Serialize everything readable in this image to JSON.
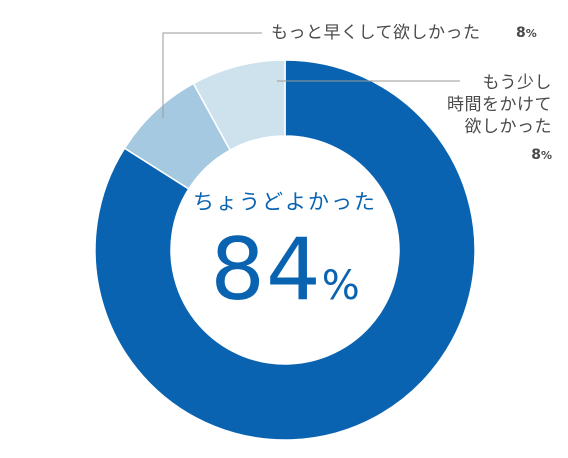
{
  "chart_data": {
    "type": "pie",
    "categories": [
      "ちょうどよかった",
      "もう少し時間をかけて欲しかった",
      "もっと早くして欲しかった"
    ],
    "values": [
      84,
      8,
      8
    ],
    "unit": "%",
    "colors": [
      "#0a63b0",
      "#a4c9e0",
      "#cde2ec"
    ],
    "center_label": "ちょうどよかった",
    "center_value": "84",
    "center_unit": "%",
    "labels": {
      "early": {
        "text": "もっと早くして欲しかった",
        "value": "8",
        "unit": "%"
      },
      "more": {
        "lines": [
          "もう少し",
          "時間をかけて",
          "欲しかった"
        ],
        "value": "8",
        "unit": "%"
      }
    }
  }
}
